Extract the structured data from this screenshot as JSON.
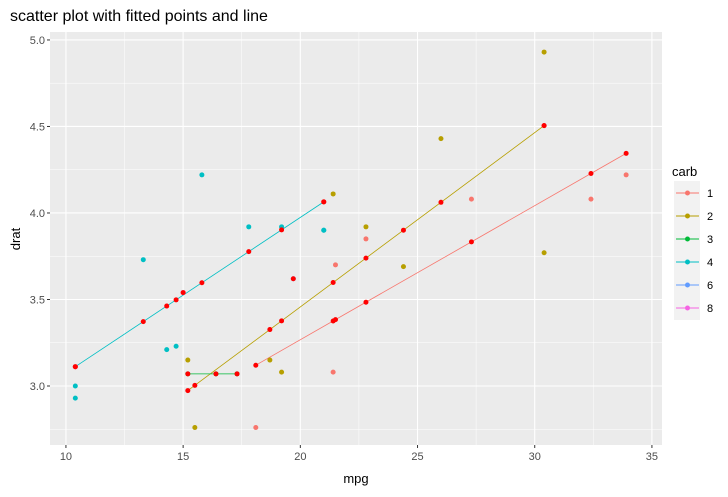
{
  "chart_data": {
    "type": "scatter",
    "title": "scatter plot with fitted points and line",
    "xlabel": "mpg",
    "ylabel": "drat",
    "xlim": [
      9.32,
      35.43
    ],
    "ylim": [
      2.659,
      5.046
    ],
    "xticks": [
      10,
      15,
      20,
      25,
      30,
      35
    ],
    "yticks": [
      3.0,
      3.5,
      4.0,
      4.5,
      5.0
    ],
    "ytick_labels": [
      "3.0",
      "3.5",
      "4.0",
      "4.5",
      "5.0"
    ],
    "grid": true,
    "legend": {
      "title": "carb",
      "placement": "right",
      "entries": [
        "1",
        "2",
        "3",
        "4",
        "6",
        "8"
      ]
    },
    "colors": {
      "1": "#F8766D",
      "2": "#B79F00",
      "3": "#00BA38",
      "4": "#00BFC4",
      "6": "#619CFF",
      "8": "#F564E3",
      "fitted": "#FF0000"
    },
    "points": [
      [
        21.0,
        3.9,
        "4"
      ],
      [
        21.0,
        3.9,
        "4"
      ],
      [
        22.8,
        3.85,
        "1"
      ],
      [
        21.4,
        3.08,
        "1"
      ],
      [
        18.7,
        3.15,
        "2"
      ],
      [
        18.1,
        2.76,
        "1"
      ],
      [
        14.3,
        3.21,
        "4"
      ],
      [
        24.4,
        3.69,
        "2"
      ],
      [
        22.8,
        3.92,
        "2"
      ],
      [
        19.2,
        3.92,
        "4"
      ],
      [
        17.8,
        3.92,
        "4"
      ],
      [
        16.4,
        3.07,
        "3"
      ],
      [
        17.3,
        3.07,
        "3"
      ],
      [
        15.2,
        3.07,
        "3"
      ],
      [
        10.4,
        2.93,
        "4"
      ],
      [
        10.4,
        3.0,
        "4"
      ],
      [
        14.7,
        3.23,
        "4"
      ],
      [
        32.4,
        4.08,
        "1"
      ],
      [
        30.4,
        4.93,
        "2"
      ],
      [
        33.9,
        4.22,
        "1"
      ],
      [
        21.5,
        3.7,
        "1"
      ],
      [
        15.5,
        2.76,
        "2"
      ],
      [
        15.2,
        3.15,
        "2"
      ],
      [
        13.3,
        3.73,
        "4"
      ],
      [
        19.2,
        3.08,
        "2"
      ],
      [
        27.3,
        4.08,
        "1"
      ],
      [
        26.0,
        4.43,
        "2"
      ],
      [
        30.4,
        3.77,
        "2"
      ],
      [
        15.8,
        4.22,
        "4"
      ],
      [
        19.7,
        3.62,
        "6"
      ],
      [
        15.0,
        3.54,
        "8"
      ],
      [
        21.4,
        4.11,
        "2"
      ]
    ]
  }
}
